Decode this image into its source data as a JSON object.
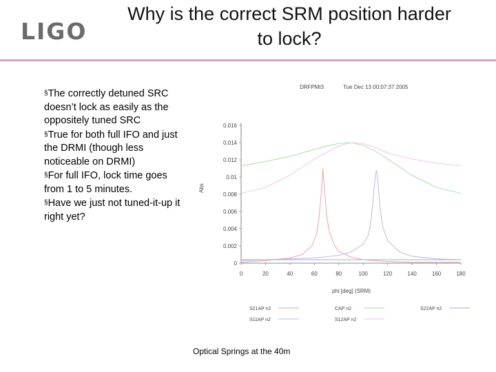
{
  "header": {
    "logo": "LIGO",
    "title_line1": "Why is the correct SRM position harder",
    "title_line2": "to lock?"
  },
  "bullets": [
    "The correctly detuned SRC doesn’t lock as easily as the oppositely tuned SRC",
    "True for both full IFO and just the DRMI (though less noticeable on DRMI)",
    "For full IFO, lock time goes from 1 to 5 minutes.",
    "Have we just not tuned-it-up it right yet?"
  ],
  "footer": "Optical Springs at the 40m",
  "chart_data": {
    "type": "line",
    "header_left": "DRFPMI3",
    "header_right": "Tue Dec 13 00:07:37 2005",
    "xlabel": "phi [deg] (SRM)",
    "ylabel": "Abs",
    "xlim": [
      0,
      180
    ],
    "ylim": [
      0,
      0.016
    ],
    "xticks": [
      0,
      20,
      40,
      60,
      80,
      100,
      120,
      140,
      160,
      180
    ],
    "yticks": [
      0,
      0.002,
      0.004,
      0.006,
      0.008,
      0.01,
      0.012,
      0.014,
      0.016
    ],
    "ytick_labels": [
      "0",
      "0.002",
      "0.004",
      "0.006",
      "0.008",
      "0.01",
      "0.012",
      "0.014",
      "0.016"
    ],
    "grid": false,
    "series": [
      {
        "name": "S21AP n2",
        "color": "#f2a0a0",
        "x": [
          0,
          20,
          40,
          50,
          58,
          62,
          64,
          66,
          67,
          68,
          70,
          72,
          76,
          80,
          90,
          100,
          120,
          140,
          160,
          180
        ],
        "y": [
          0.0001,
          0.0003,
          0.0006,
          0.001,
          0.002,
          0.0035,
          0.0055,
          0.0088,
          0.011,
          0.009,
          0.0056,
          0.0038,
          0.0022,
          0.0014,
          0.0007,
          0.0004,
          0.0002,
          0.0001,
          0.0001,
          0.0001
        ]
      },
      {
        "name": "S11AP n2",
        "color": "#b8b8e8",
        "x": [
          0,
          20,
          40,
          60,
          80,
          90,
          100,
          104,
          106,
          108,
          110,
          111,
          112,
          114,
          116,
          120,
          130,
          140,
          160,
          180
        ],
        "y": [
          0.0003,
          0.0004,
          0.0005,
          0.0006,
          0.0009,
          0.0013,
          0.0022,
          0.0032,
          0.0045,
          0.0072,
          0.0102,
          0.0108,
          0.0095,
          0.0062,
          0.0042,
          0.0026,
          0.0013,
          0.0008,
          0.0005,
          0.0004
        ]
      },
      {
        "name": "CAP n2",
        "color": "#a8dca8",
        "x": [
          0,
          20,
          40,
          60,
          70,
          80,
          90,
          100,
          110,
          120,
          140,
          160,
          180
        ],
        "y": [
          0.0113,
          0.0118,
          0.0124,
          0.0132,
          0.0136,
          0.0139,
          0.014,
          0.0137,
          0.013,
          0.0121,
          0.0102,
          0.0088,
          0.0081
        ]
      },
      {
        "name": "S12AP n2",
        "color": "#e8c8e8",
        "x": [
          0,
          20,
          40,
          60,
          80,
          90,
          100,
          110,
          120,
          140,
          160,
          180
        ],
        "y": [
          0.0081,
          0.0088,
          0.0102,
          0.0121,
          0.0136,
          0.014,
          0.0139,
          0.0134,
          0.0128,
          0.0121,
          0.0116,
          0.0113
        ]
      },
      {
        "name": "S22AP n2",
        "color": "#9ab0d8",
        "x": [
          0,
          40,
          80,
          120,
          160,
          180
        ],
        "y": [
          0.0004,
          0.0004,
          0.0004,
          0.0004,
          0.0004,
          0.0004
        ]
      }
    ],
    "legend_position": "bottom"
  }
}
